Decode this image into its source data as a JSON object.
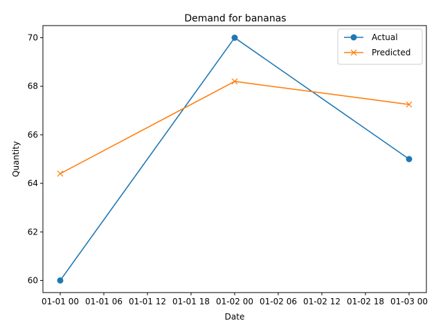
{
  "chart_data": {
    "type": "line",
    "title": "Demand for bananas",
    "xlabel": "Date",
    "ylabel": "Quantity",
    "x": [
      "01-01 00",
      "01-02 00",
      "01-03 00"
    ],
    "x_ticks": [
      "01-01 00",
      "01-01 06",
      "01-01 12",
      "01-01 18",
      "01-02 00",
      "01-02 06",
      "01-02 12",
      "01-02 18",
      "01-03 00"
    ],
    "y_ticks": [
      60,
      62,
      64,
      66,
      68,
      70
    ],
    "ylim": [
      59.5,
      70.5
    ],
    "grid": false,
    "legend_position": "top-right",
    "series": [
      {
        "name": "Actual",
        "values": [
          60,
          70,
          65
        ],
        "color": "#1f77b4",
        "marker": "circle"
      },
      {
        "name": "Predicted",
        "values": [
          64.4,
          68.2,
          67.25
        ],
        "color": "#ff7f0e",
        "marker": "x"
      }
    ]
  }
}
